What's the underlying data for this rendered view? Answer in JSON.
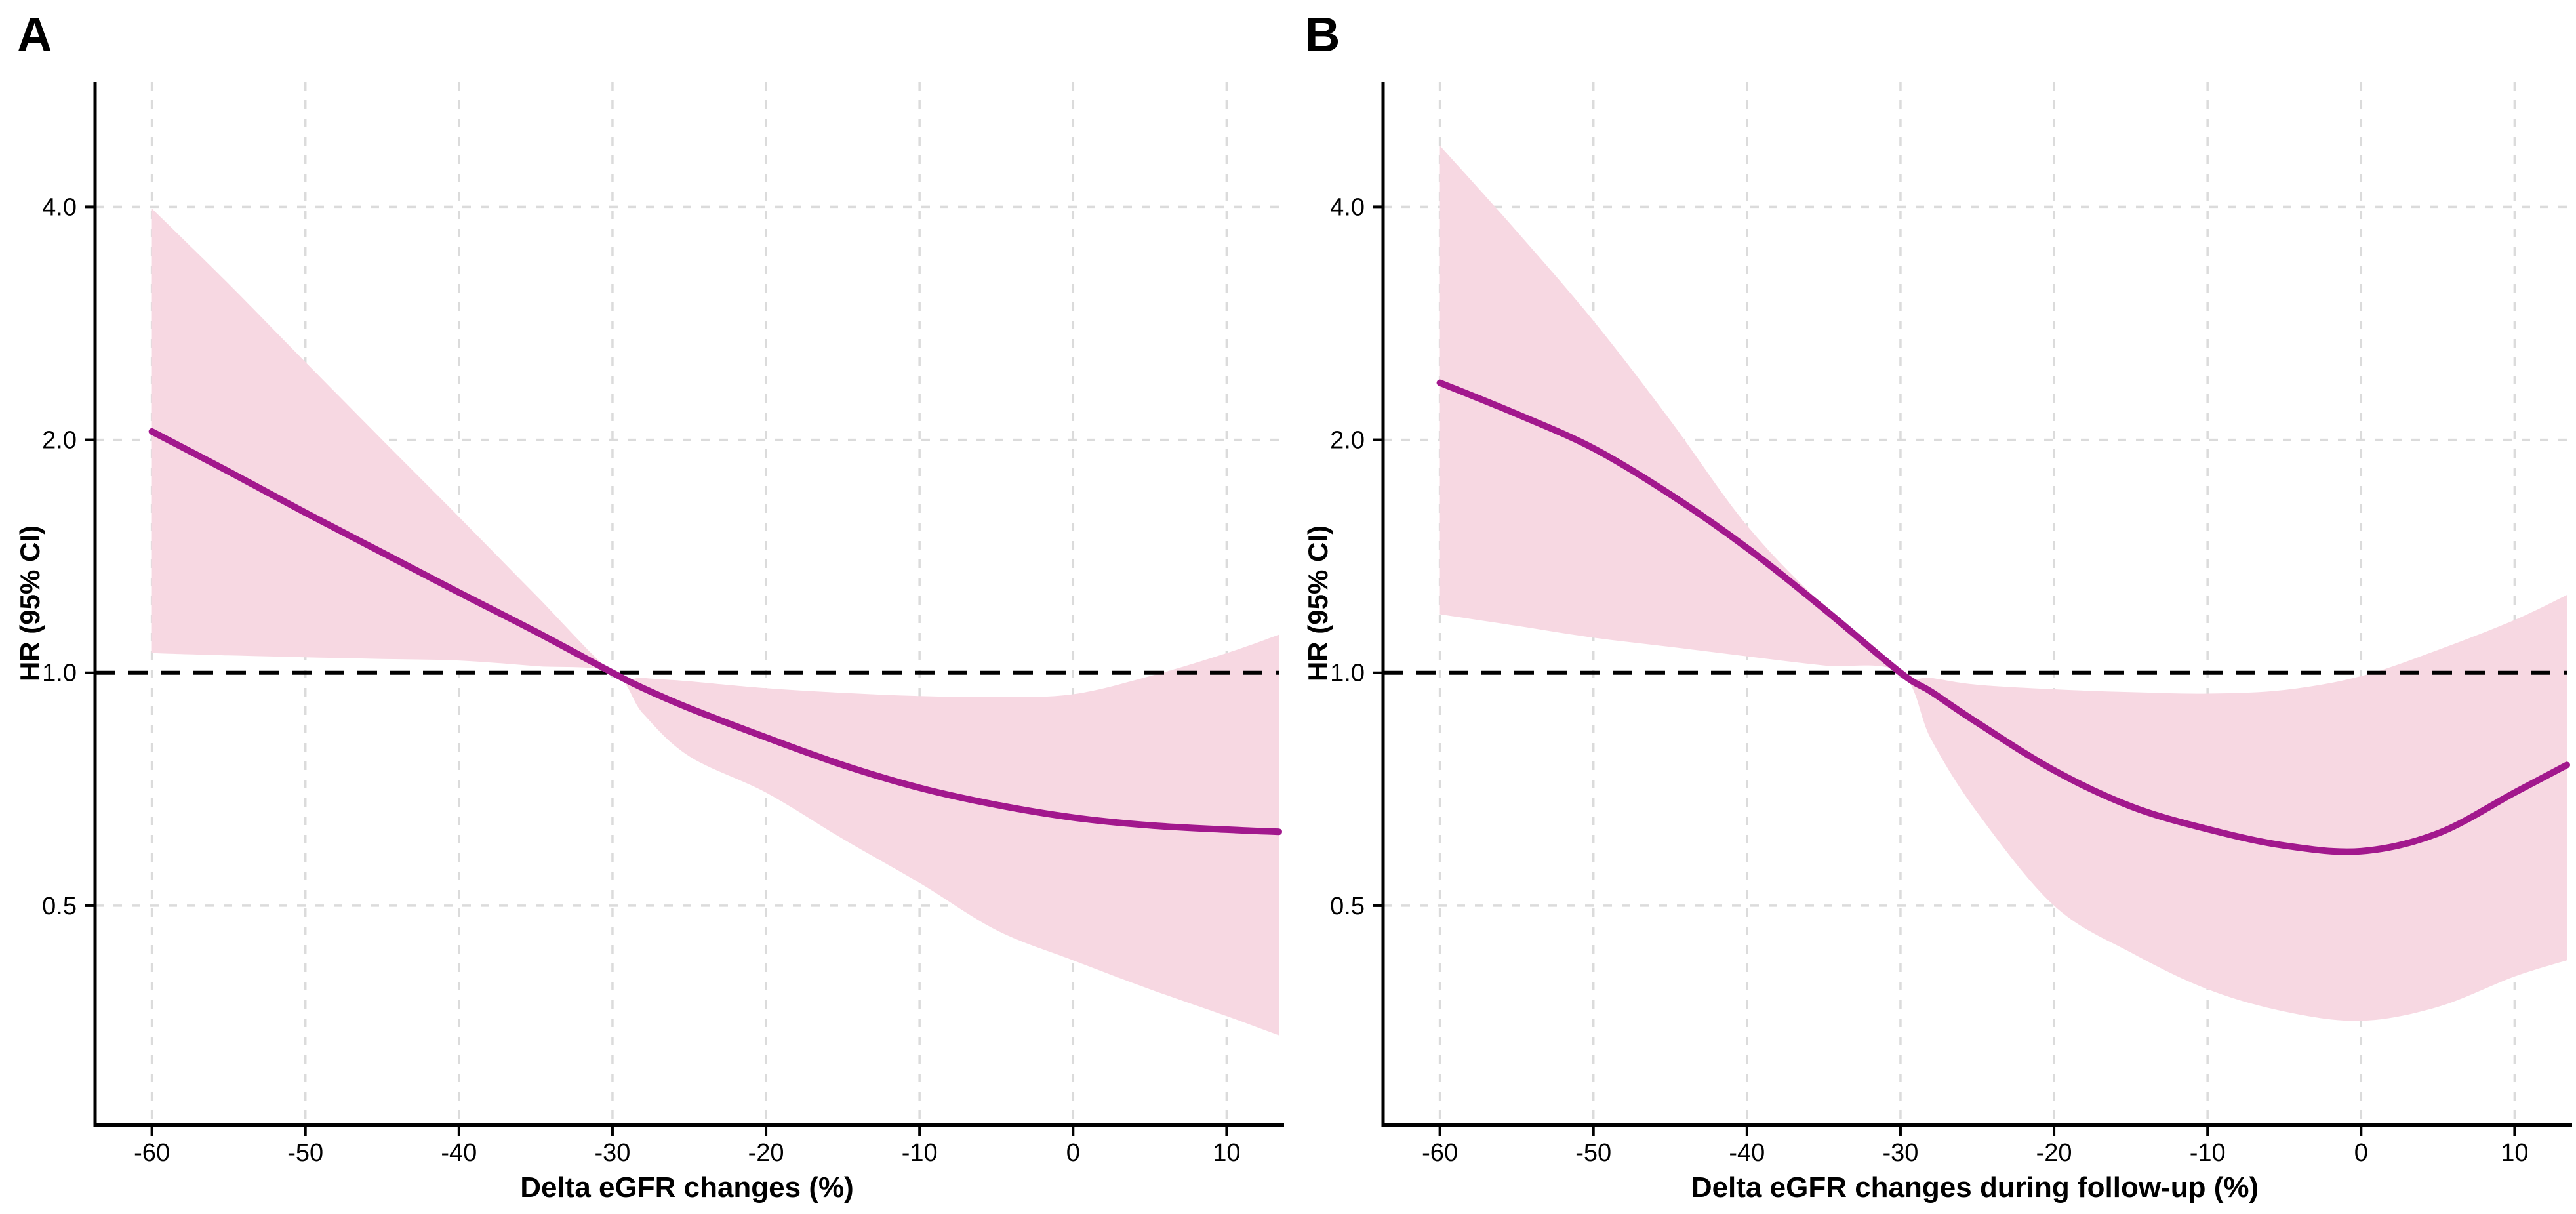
{
  "colors": {
    "curve": "#A2188D",
    "band": "#F7D8E2",
    "grid": "#DBDBDB",
    "ref_line": "#000000",
    "axis": "#000000",
    "background": "#FFFFFF"
  },
  "chart_data": [
    {
      "type": "line",
      "panel_label": "A",
      "xlabel": "Delta eGFR changes (%)",
      "ylabel": "HR (95% CI)",
      "xlim": [
        -63.7,
        13.4
      ],
      "ylim": [
        0.26,
        5.8
      ],
      "y_scale": "log2",
      "grid": "dashed",
      "legend_position": "none",
      "ref_line": 1.0,
      "xtick_values": [
        -60,
        -50,
        -40,
        -30,
        -20,
        -10,
        0,
        10
      ],
      "xtick_labels": [
        "-60",
        "-50",
        "-40",
        "-30",
        "-20",
        "-10",
        "0",
        "10"
      ],
      "ytick_values": [
        4,
        2,
        1,
        0.5
      ],
      "ytick_labels": [
        "4.0",
        "2.0",
        "1.0",
        "0.5"
      ],
      "x": [
        -60,
        -55,
        -50,
        -45,
        -40,
        -35,
        -30,
        -28,
        -25,
        -20,
        -15,
        -10,
        -5,
        0,
        5,
        10,
        13.4
      ],
      "series": [
        {
          "name": "estimate",
          "values": [
            2.05,
            1.82,
            1.61,
            1.43,
            1.27,
            1.13,
            1.0,
            0.955,
            0.9,
            0.825,
            0.76,
            0.71,
            0.675,
            0.65,
            0.635,
            0.627,
            0.623
          ]
        },
        {
          "name": "ci_lower",
          "values": [
            1.06,
            1.053,
            1.047,
            1.042,
            1.037,
            1.02,
            1.0,
            0.885,
            0.78,
            0.7,
            0.61,
            0.535,
            0.465,
            0.425,
            0.39,
            0.36,
            0.34
          ]
        },
        {
          "name": "ci_upper",
          "values": [
            3.98,
            3.18,
            2.52,
            2.0,
            1.59,
            1.26,
            1.0,
            0.985,
            0.975,
            0.955,
            0.942,
            0.933,
            0.93,
            0.938,
            0.99,
            1.06,
            1.12
          ]
        }
      ]
    },
    {
      "type": "line",
      "panel_label": "B",
      "xlabel": "Delta eGFR changes during follow-up (%)",
      "ylabel": "HR (95% CI)",
      "xlim": [
        -63.7,
        13.4
      ],
      "ylim": [
        0.26,
        5.8
      ],
      "y_scale": "log2",
      "grid": "dashed",
      "legend_position": "none",
      "ref_line": 1.0,
      "xtick_values": [
        -60,
        -50,
        -40,
        -30,
        -20,
        -10,
        0,
        10
      ],
      "xtick_labels": [
        "-60",
        "-50",
        "-40",
        "-30",
        "-20",
        "-10",
        "0",
        "10"
      ],
      "ytick_values": [
        4,
        2,
        1,
        0.5
      ],
      "ytick_labels": [
        "4.0",
        "2.0",
        "1.0",
        "0.5"
      ],
      "x": [
        -60,
        -55,
        -50,
        -45,
        -40,
        -35,
        -30,
        -28,
        -25,
        -20,
        -15,
        -10,
        -5,
        0,
        5,
        10,
        13.4
      ],
      "series": [
        {
          "name": "estimate",
          "values": [
            2.37,
            2.16,
            1.95,
            1.7,
            1.45,
            1.21,
            1.0,
            0.945,
            0.862,
            0.748,
            0.672,
            0.628,
            0.598,
            0.588,
            0.62,
            0.7,
            0.76
          ]
        },
        {
          "name": "ci_lower",
          "values": [
            1.19,
            1.15,
            1.11,
            1.08,
            1.05,
            1.022,
            1.0,
            0.82,
            0.66,
            0.5,
            0.435,
            0.39,
            0.365,
            0.355,
            0.37,
            0.405,
            0.425
          ]
        },
        {
          "name": "ci_upper",
          "values": [
            4.8,
            3.72,
            2.85,
            2.12,
            1.55,
            1.22,
            1.0,
            0.985,
            0.965,
            0.952,
            0.944,
            0.94,
            0.95,
            0.99,
            1.07,
            1.17,
            1.26
          ]
        }
      ]
    }
  ]
}
